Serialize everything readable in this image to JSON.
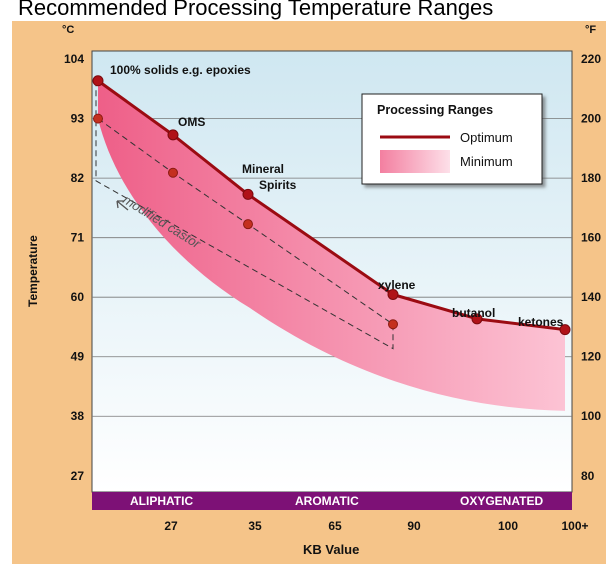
{
  "title": "Recommended Processing Temperature Ranges",
  "chart_data": {
    "type": "line",
    "xlabel": "KB Value",
    "ylabel": "Temperature",
    "left_unit": "°C",
    "right_unit": "°F",
    "y_ticks_c": [
      "104",
      "93",
      "82",
      "71",
      "60",
      "49",
      "38",
      "27"
    ],
    "y_ticks_f": [
      "220",
      "200",
      "180",
      "160",
      "140",
      "120",
      "100",
      "80"
    ],
    "ylim_c": [
      27,
      104
    ],
    "x_ticks": [
      "27",
      "35",
      "65",
      "90",
      "100",
      "100+"
    ],
    "categories_band": [
      "ALIPHATIC",
      "AROMATIC",
      "OXYGENATED"
    ],
    "legend": {
      "title": "Processing Ranges",
      "items": [
        {
          "label": "Optimum",
          "color": "#9b0b12"
        },
        {
          "label": "Minimum",
          "color": "#f6a0b8"
        }
      ]
    },
    "series": [
      {
        "name": "Optimum",
        "x_kb": [
          "",
          "27",
          "35",
          "65",
          "90",
          "100",
          "100+"
        ],
        "y_c": [
          100,
          90,
          79,
          60.5,
          56,
          54
        ],
        "point_labels": [
          "100% solids e.g. epoxies",
          "OMS",
          "Mineral Spirits",
          "xylene",
          "butanol",
          "ketones"
        ]
      },
      {
        "name": "Minimum",
        "y_c_points": [
          93,
          83,
          73.5,
          55
        ],
        "y_c_lower_end": 39
      }
    ],
    "annotation": "modified castor",
    "colors": {
      "background_top": "#d8ecf4",
      "background_bottom": "#ffffff",
      "optimum": "#9b0b12",
      "minimum_fill": "#f07a9c",
      "band": "#7d1176"
    },
    "grid": true,
    "legend_position": "top-right"
  }
}
